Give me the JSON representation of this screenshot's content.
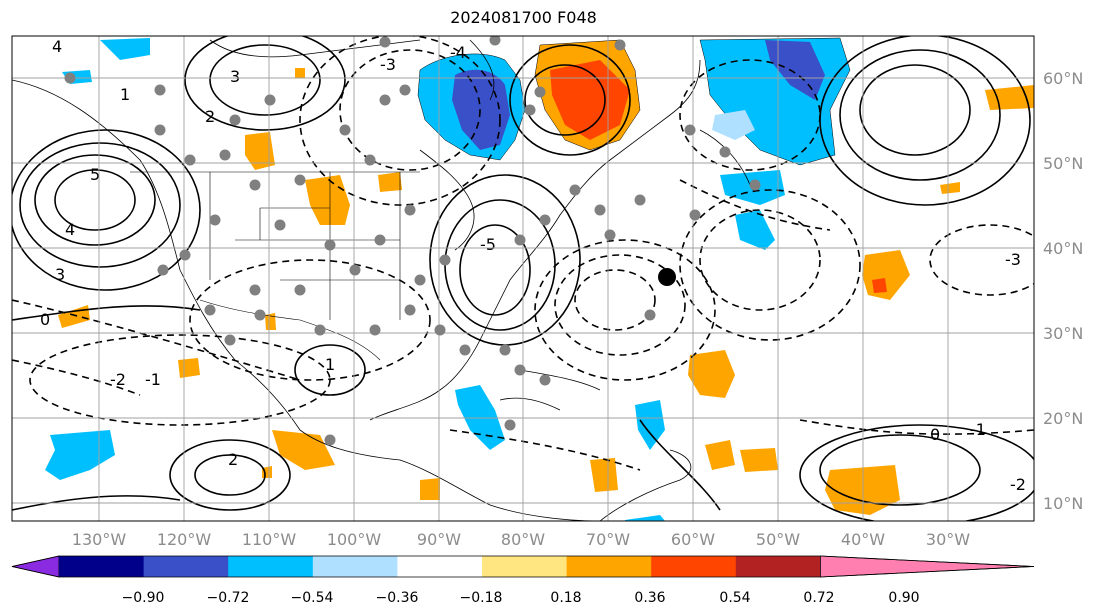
{
  "title": "2024081700 F048",
  "map": {
    "lon_ticks": [
      "130°W",
      "120°W",
      "110°W",
      "100°W",
      "90°W",
      "80°W",
      "70°W",
      "60°W",
      "50°W",
      "40°W",
      "30°W"
    ],
    "lat_ticks": [
      "60°N",
      "50°N",
      "40°N",
      "30°N",
      "20°N",
      "10°N"
    ],
    "contour_labels": [
      "4",
      "3",
      "2",
      "1",
      "0",
      "-1",
      "-2",
      "-3",
      "-4",
      "-5",
      "5",
      "4",
      "3",
      "2",
      "1",
      "0",
      "-1",
      "-2",
      "-3"
    ]
  },
  "colorbar": {
    "ticks": [
      "−0.90",
      "−0.72",
      "−0.54",
      "−0.36",
      "−0.18",
      "0.18",
      "0.36",
      "0.54",
      "0.72",
      "0.90"
    ],
    "colors": [
      "#8a2be2",
      "#00008b",
      "#3a50c8",
      "#00bfff",
      "#b0e0ff",
      "#ffffff",
      "#ffe680",
      "#ffa500",
      "#ff4500",
      "#b22222",
      "#ff80b0"
    ]
  },
  "colors": {
    "grid": "#a0a0a0",
    "coast": "#000000",
    "shade_warm": "#ffa500",
    "shade_hot": "#ff4500",
    "shade_cool": "#00bfff",
    "shade_cold": "#3a50c8",
    "marker_gray": "#808080",
    "marker_black": "#000000"
  }
}
